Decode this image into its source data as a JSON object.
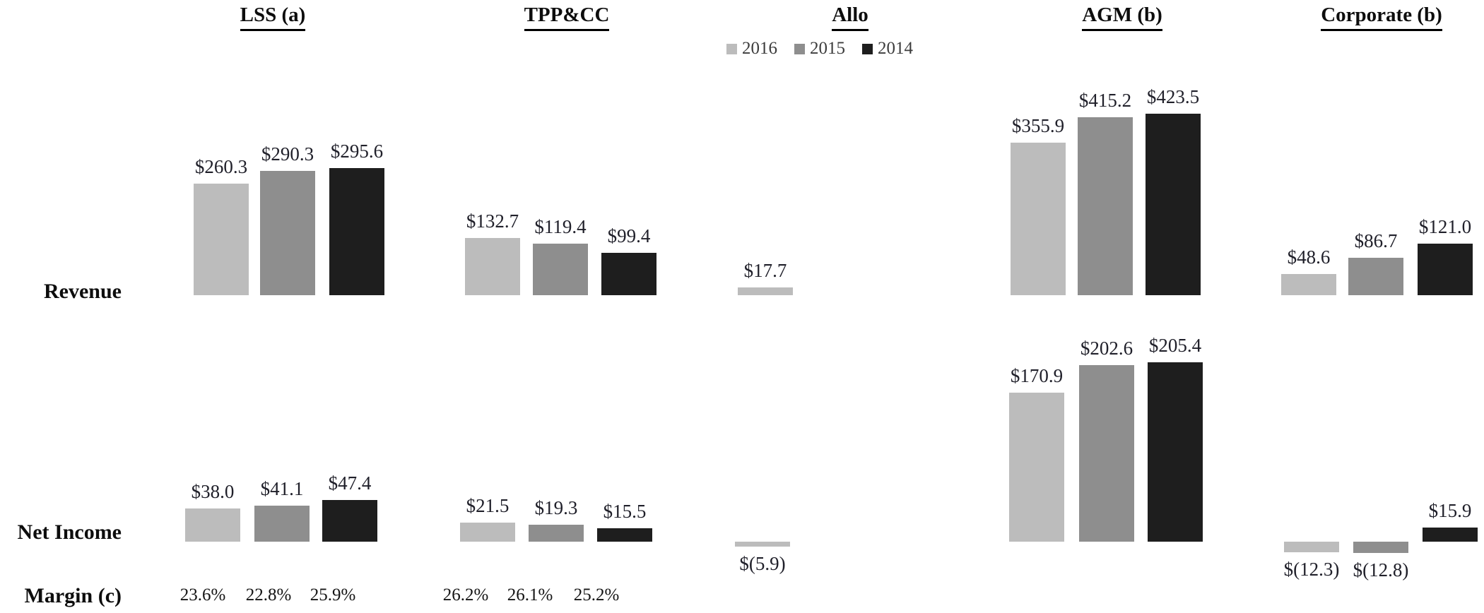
{
  "rows": {
    "revenue_label": "Revenue",
    "net_income_label": "Net Income",
    "margin_label": "Margin (c)"
  },
  "chart_data": {
    "type": "bar",
    "legend_position": "top-center",
    "value_axis_visible": false,
    "grid": false,
    "years": [
      {
        "label": "2016",
        "color": "#bcbcbc"
      },
      {
        "label": "2015",
        "color": "#8e8e8e"
      },
      {
        "label": "2014",
        "color": "#1e1e1e"
      }
    ],
    "row_names": [
      "Revenue",
      "Net Income",
      "Margin (c)"
    ],
    "segments": [
      {
        "name": "LSS (a)",
        "revenue": [
          260.3,
          290.3,
          295.6
        ],
        "revenue_labels": [
          "$260.3",
          "$290.3",
          "$295.6"
        ],
        "net_income": [
          38.0,
          41.1,
          47.4
        ],
        "net_income_labels": [
          "$38.0",
          "$41.1",
          "$47.4"
        ],
        "margins": [
          "23.6%",
          "22.8%",
          "25.9%"
        ]
      },
      {
        "name": "TPP&CC",
        "revenue": [
          132.7,
          119.4,
          99.4
        ],
        "revenue_labels": [
          "$132.7",
          "$119.4",
          "$99.4"
        ],
        "net_income": [
          21.5,
          19.3,
          15.5
        ],
        "net_income_labels": [
          "$21.5",
          "$19.3",
          "$15.5"
        ],
        "margins": [
          "26.2%",
          "26.1%",
          "25.2%"
        ]
      },
      {
        "name": "Allo",
        "revenue": [
          17.7,
          null,
          null
        ],
        "revenue_labels": [
          "$17.7",
          null,
          null
        ],
        "net_income": [
          -5.9,
          null,
          null
        ],
        "net_income_labels": [
          "$(5.9)",
          null,
          null
        ],
        "margins": []
      },
      {
        "name": "AGM (b)",
        "revenue": [
          355.9,
          415.2,
          423.5
        ],
        "revenue_labels": [
          "$355.9",
          "$415.2",
          "$423.5"
        ],
        "net_income": [
          170.9,
          202.6,
          205.4
        ],
        "net_income_labels": [
          "$170.9",
          "$202.6",
          "$205.4"
        ],
        "margins": []
      },
      {
        "name": "Corporate (b)",
        "revenue": [
          48.6,
          86.7,
          121.0
        ],
        "revenue_labels": [
          "$48.6",
          "$86.7",
          "$121.0"
        ],
        "net_income": [
          -12.3,
          -12.8,
          15.9
        ],
        "net_income_labels": [
          "$(12.3)",
          "$(12.8)",
          "$15.9"
        ],
        "margins": []
      }
    ]
  }
}
